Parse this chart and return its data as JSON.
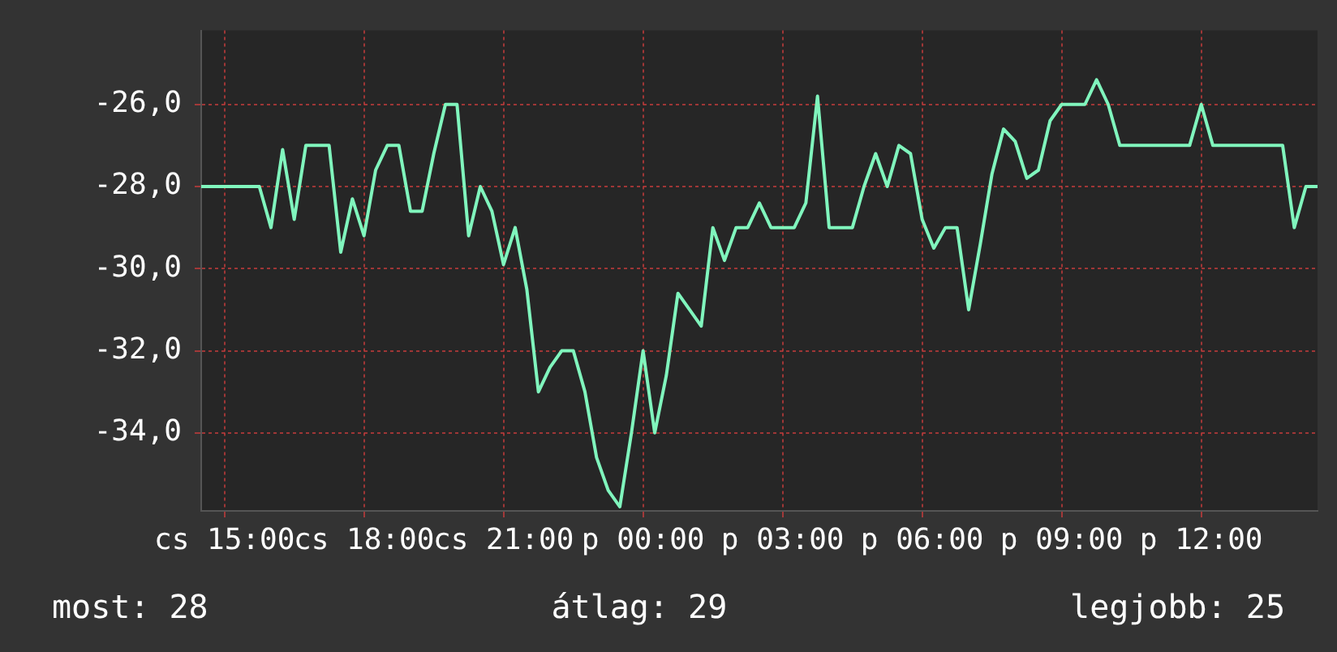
{
  "chart_data": {
    "type": "line",
    "color": "#80f5bd",
    "categories": [
      null,
      null,
      "cs 15:00",
      null,
      null,
      null,
      null,
      null,
      null,
      null,
      null,
      null,
      null,
      null,
      "cs 18:00",
      null,
      null,
      null,
      null,
      null,
      null,
      null,
      null,
      null,
      null,
      null,
      "cs 21:00",
      null,
      null,
      null,
      null,
      null,
      null,
      null,
      null,
      null,
      null,
      null,
      "p 00:00",
      null,
      null,
      null,
      null,
      null,
      null,
      null,
      null,
      null,
      null,
      null,
      "p 03:00",
      null,
      null,
      null,
      null,
      null,
      null,
      null,
      null,
      null,
      null,
      null,
      "p 06:00",
      null,
      null,
      null,
      null,
      null,
      null,
      null,
      null,
      null,
      null,
      null,
      "p 09:00",
      null,
      null,
      null,
      null,
      null,
      null,
      null,
      null,
      null,
      null,
      null,
      "p 12:00",
      null,
      null,
      null,
      null,
      null,
      null,
      null,
      null,
      null,
      null
    ],
    "values": [
      -28,
      -28,
      -28,
      -28,
      -28,
      -28,
      -29,
      -27.1,
      -28.8,
      -27,
      -27,
      -27,
      -29.6,
      -28.3,
      -29.2,
      -27.6,
      -27,
      -27,
      -28.6,
      -28.6,
      -27.2,
      -26,
      -26,
      -29.2,
      -28,
      -28.6,
      -29.9,
      -29,
      -30.5,
      -33,
      -32.4,
      -32,
      -32,
      -33,
      -34.6,
      -35.4,
      -35.8,
      -34,
      -32,
      -34,
      -32.6,
      -30.6,
      -31,
      -31.4,
      -29,
      -29.8,
      -29,
      -29,
      -28.4,
      -29,
      -29,
      -29,
      -28.4,
      -25.8,
      -29,
      -29,
      -29,
      -28,
      -27.2,
      -28,
      -27,
      -27.2,
      -28.8,
      -29.5,
      -29,
      -29,
      -31,
      -29.4,
      -27.7,
      -26.6,
      -26.9,
      -27.8,
      -27.6,
      -26.4,
      -26,
      -26,
      -26,
      -25.4,
      -26,
      -27,
      -27,
      -27,
      -27,
      -27,
      -27,
      -27,
      -26,
      -27,
      -27,
      -27,
      -27,
      -27,
      -27,
      -27,
      -29,
      -28,
      -28
    ],
    "ylim": [
      -35.9,
      -24.2
    ],
    "yticks": [
      {
        "value": -34,
        "label": "-34,0"
      },
      {
        "value": -32,
        "label": "-32,0"
      },
      {
        "value": -30,
        "label": "-30,0"
      },
      {
        "value": -28,
        "label": "-28,0"
      },
      {
        "value": -26,
        "label": "-26,0"
      }
    ],
    "grid": true,
    "annotations": [
      "most: 28",
      "átlag: 29",
      "legjobb: 25"
    ]
  }
}
